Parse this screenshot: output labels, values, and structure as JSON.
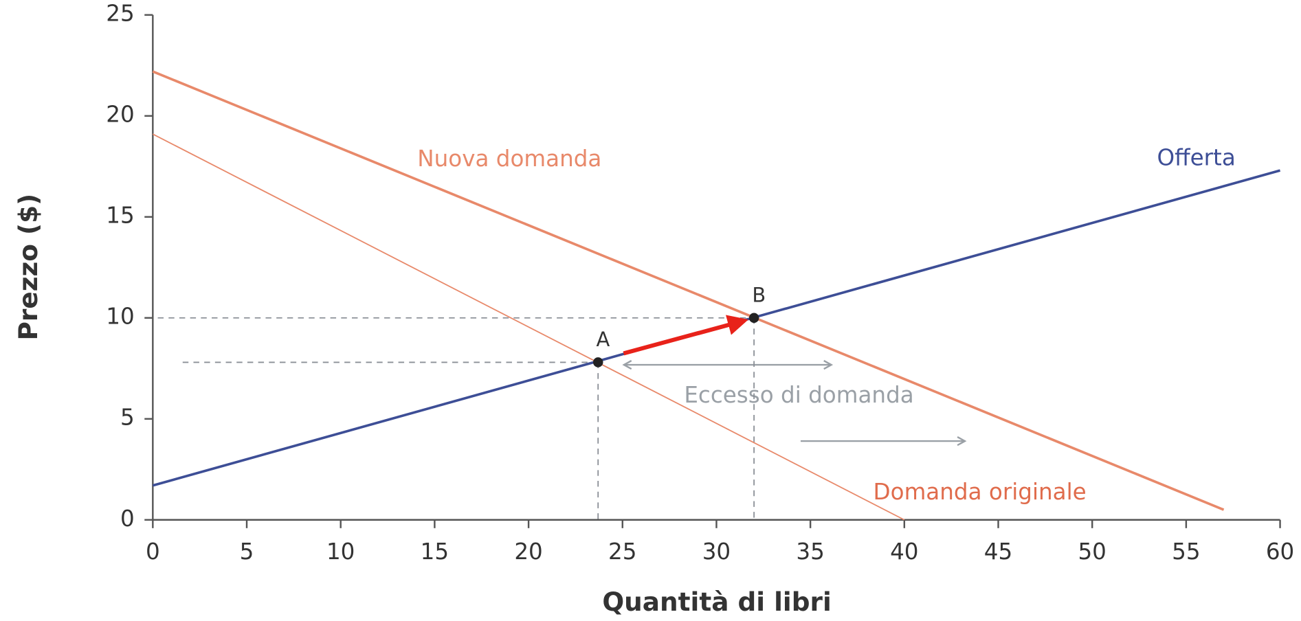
{
  "chart_data": {
    "type": "line",
    "xlabel": "Quantità di libri",
    "ylabel": "Prezzo ($)",
    "xlim": [
      0,
      60
    ],
    "ylim": [
      0,
      25
    ],
    "xticks": [
      0,
      5,
      10,
      15,
      20,
      25,
      30,
      35,
      40,
      45,
      50,
      55,
      60
    ],
    "yticks": [
      0,
      5,
      10,
      15,
      20,
      25
    ],
    "series": [
      {
        "name": "Offerta",
        "color": "#3d4e96",
        "x": [
          0,
          60
        ],
        "values": [
          1.7,
          17.3
        ]
      },
      {
        "name": "Domanda originale",
        "color": "#e8896a",
        "x": [
          0,
          40
        ],
        "values": [
          19.1,
          0
        ]
      },
      {
        "name": "Nuova domanda",
        "color": "#e8896a",
        "x": [
          0,
          57
        ],
        "values": [
          22.2,
          0.5
        ]
      }
    ],
    "points": [
      {
        "label": "A",
        "x": 23.7,
        "y": 7.8
      },
      {
        "label": "B",
        "x": 32,
        "y": 10
      }
    ],
    "annotation": "Eccesso di domanda"
  }
}
